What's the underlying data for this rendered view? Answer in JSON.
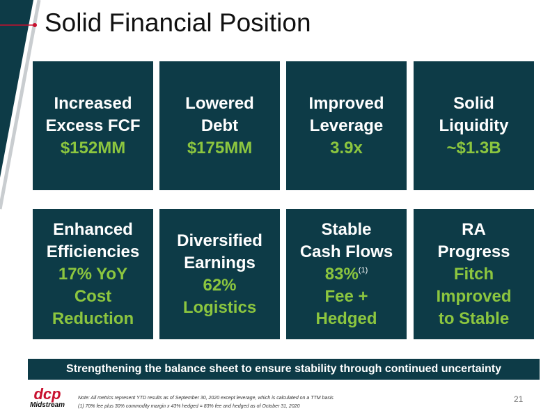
{
  "header": {
    "title": "Solid Financial Position"
  },
  "cards": [
    {
      "lines": [
        "Increased",
        "Excess FCF"
      ],
      "highlight": [
        "$152MM"
      ]
    },
    {
      "lines": [
        "Lowered",
        "Debt"
      ],
      "highlight": [
        "$175MM"
      ]
    },
    {
      "lines": [
        "Improved",
        "Leverage"
      ],
      "highlight": [
        "3.9x"
      ]
    },
    {
      "lines": [
        "Solid",
        "Liquidity"
      ],
      "highlight": [
        "~$1.3B"
      ]
    },
    {
      "lines": [
        "Enhanced",
        "Efficiencies"
      ],
      "highlight": [
        "17% YoY",
        "Cost",
        "Reduction"
      ]
    },
    {
      "lines": [
        "Diversified",
        "Earnings"
      ],
      "highlight": [
        "62%",
        "Logistics"
      ]
    },
    {
      "lines": [
        "Stable",
        "Cash Flows"
      ],
      "highlight": [
        "83%",
        "Fee +",
        "Hedged"
      ],
      "note_ref": "(1)"
    },
    {
      "lines": [
        "RA",
        "Progress"
      ],
      "highlight": [
        "Fitch",
        "Improved",
        "to Stable"
      ]
    }
  ],
  "banner": "Strengthening the balance sheet to ensure stability through continued uncertainty",
  "footer": {
    "logo": {
      "name": "dcp",
      "sub": "Midstream"
    },
    "notes": [
      "Note: All metrics represent YTD results as of September 30, 2020 except leverage, which is calculated on a TTM basis",
      "(1)     70% fee plus 30% commodity margin x 43% hedged = 83% fee and hedged as of October 31, 2020"
    ],
    "page_number": "21"
  }
}
